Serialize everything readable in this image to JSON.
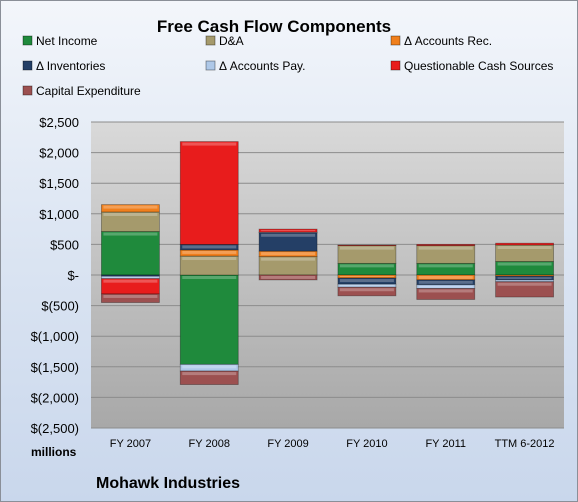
{
  "chart_data": {
    "type": "bar",
    "stacked": true,
    "title": "Free Cash Flow Components",
    "categories": [
      "FY 2007",
      "FY 2008",
      "FY 2009",
      "FY 2010",
      "FY 2011",
      "TTM 6-2012"
    ],
    "y_unit_label": "millions",
    "ylim": [
      -2500,
      2500
    ],
    "y_ticks": [
      2500,
      2000,
      1500,
      1000,
      500,
      0,
      -500,
      -1000,
      -1500,
      -2000,
      -2500
    ],
    "y_tick_labels": [
      "$2,500",
      "$2,000",
      "$1,500",
      "$1,000",
      "$500",
      "$-",
      "$(500)",
      "$(1,000)",
      "$(1,500)",
      "$(2,000)",
      "$(2,500)"
    ],
    "grid": true,
    "legend_position": "top",
    "series": [
      {
        "name": "Net Income",
        "color": "#1f8a3c",
        "values": [
          710,
          -1460,
          0,
          190,
          190,
          220
        ]
      },
      {
        "name": "D&A",
        "color": "#a59a6c",
        "values": [
          320,
          310,
          300,
          290,
          290,
          270
        ]
      },
      {
        "name": "Δ Accounts Rec.",
        "color": "#f07f1c",
        "values": [
          120,
          100,
          90,
          -50,
          -80,
          -20
        ]
      },
      {
        "name": "Δ Inventories",
        "color": "#243f66",
        "values": [
          -20,
          90,
          300,
          -100,
          -80,
          -60
        ]
      },
      {
        "name": "Δ Accounts Pay.",
        "color": "#aec8e8",
        "values": [
          -40,
          -110,
          10,
          -50,
          -60,
          -30
        ]
      },
      {
        "name": "Questionable Cash Sources",
        "color": "#e81c1c",
        "values": [
          -250,
          1680,
          50,
          10,
          20,
          30
        ]
      },
      {
        "name": "Capital Expenditure",
        "color": "#9c5050",
        "values": [
          -140,
          -220,
          -80,
          -140,
          -180,
          -250
        ]
      }
    ],
    "footer": "Mohawk Industries"
  }
}
